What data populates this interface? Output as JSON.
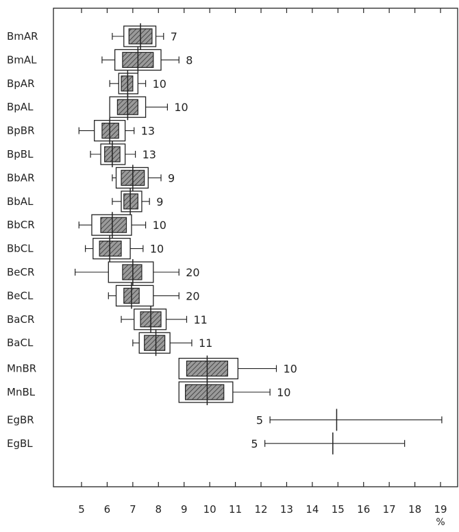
{
  "colors": {
    "ink": "#222222",
    "hatch_fill": "#8a8a8a",
    "background": "#ffffff"
  },
  "chart_data": {
    "type": "box",
    "title": "",
    "xlabel": "%",
    "ylabel": "",
    "xlim": [
      3.9,
      19.3
    ],
    "x_ticks": [
      5,
      6,
      7,
      8,
      9,
      10,
      11,
      12,
      13,
      14,
      15,
      16,
      17,
      18,
      19
    ],
    "grid": false,
    "legend": "none",
    "series": [
      {
        "label": "BmAR",
        "n": "7",
        "mean": 7.3,
        "outer": [
          6.65,
          7.9
        ],
        "inner": [
          6.85,
          7.75
        ],
        "range": [
          6.2,
          8.2
        ]
      },
      {
        "label": "BmAL",
        "n": "8",
        "mean": 7.2,
        "outer": [
          6.3,
          8.1
        ],
        "inner": [
          6.6,
          7.8
        ],
        "range": [
          5.8,
          8.8
        ]
      },
      {
        "label": "BpAR",
        "n": "10",
        "mean": 6.8,
        "outer": [
          6.45,
          7.2
        ],
        "inner": [
          6.55,
          7.0
        ],
        "range": [
          6.1,
          7.5
        ]
      },
      {
        "label": "BpAL",
        "n": "10",
        "mean": 6.8,
        "outer": [
          6.1,
          7.5
        ],
        "inner": [
          6.4,
          7.2
        ],
        "range": [
          6.1,
          8.35
        ]
      },
      {
        "label": "BpBR",
        "n": "13",
        "mean": 6.1,
        "outer": [
          5.5,
          6.7
        ],
        "inner": [
          5.8,
          6.45
        ],
        "range": [
          4.9,
          7.05
        ]
      },
      {
        "label": "BpBL",
        "n": "13",
        "mean": 6.2,
        "outer": [
          5.75,
          6.7
        ],
        "inner": [
          5.9,
          6.5
        ],
        "range": [
          5.35,
          7.1
        ]
      },
      {
        "label": "BbAR",
        "n": "9",
        "mean": 7.0,
        "outer": [
          6.35,
          7.6
        ],
        "inner": [
          6.55,
          7.45
        ],
        "range": [
          6.2,
          8.1
        ]
      },
      {
        "label": "BbAL",
        "n": "9",
        "mean": 6.9,
        "outer": [
          6.55,
          7.35
        ],
        "inner": [
          6.65,
          7.2
        ],
        "range": [
          6.2,
          7.65
        ]
      },
      {
        "label": "BbCR",
        "n": "10",
        "mean": 6.2,
        "outer": [
          5.4,
          6.95
        ],
        "inner": [
          5.75,
          6.75
        ],
        "range": [
          4.9,
          7.5
        ]
      },
      {
        "label": "BbCL",
        "n": "10",
        "mean": 6.1,
        "outer": [
          5.45,
          6.9
        ],
        "inner": [
          5.7,
          6.55
        ],
        "range": [
          5.15,
          7.4
        ]
      },
      {
        "label": "BeCR",
        "n": "20",
        "mean": 7.0,
        "outer": [
          6.05,
          7.8
        ],
        "inner": [
          6.6,
          7.35
        ],
        "range": [
          4.75,
          8.8
        ]
      },
      {
        "label": "BeCL",
        "n": "20",
        "mean": 6.95,
        "outer": [
          6.35,
          7.8
        ],
        "inner": [
          6.65,
          7.25
        ],
        "range": [
          6.05,
          8.8
        ]
      },
      {
        "label": "BaCR",
        "n": "11",
        "mean": 7.7,
        "outer": [
          7.05,
          8.3
        ],
        "inner": [
          7.3,
          8.1
        ],
        "range": [
          6.55,
          9.1
        ]
      },
      {
        "label": "BaCL",
        "n": "11",
        "mean": 7.9,
        "outer": [
          7.25,
          8.45
        ],
        "inner": [
          7.45,
          8.25
        ],
        "range": [
          7.0,
          9.3
        ]
      },
      {
        "label": "MnBR",
        "n": "10",
        "mean": 9.9,
        "outer": [
          8.8,
          11.1
        ],
        "inner": [
          9.1,
          10.7
        ],
        "range": [
          8.85,
          12.6
        ]
      },
      {
        "label": "MnBL",
        "n": "10",
        "mean": 9.9,
        "outer": [
          8.8,
          10.9
        ],
        "inner": [
          9.05,
          10.55
        ],
        "range": [
          8.85,
          12.35
        ]
      },
      {
        "label": "EgBR",
        "n": "5",
        "mean": 14.95,
        "outer": null,
        "inner": null,
        "range": [
          12.35,
          19.05
        ]
      },
      {
        "label": "EgBL",
        "n": "5",
        "mean": 14.8,
        "outer": null,
        "inner": null,
        "range": [
          12.15,
          17.6
        ]
      }
    ]
  }
}
